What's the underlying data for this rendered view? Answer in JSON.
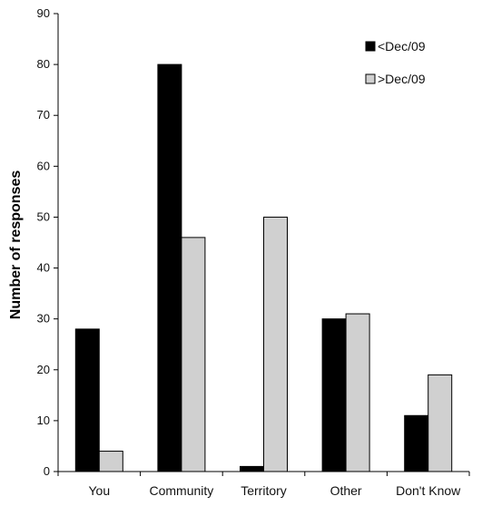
{
  "chart_data": {
    "type": "bar",
    "categories": [
      "You",
      "Community",
      "Territory",
      "Other",
      "Don't Know"
    ],
    "series": [
      {
        "name": "<Dec/09",
        "values": [
          28,
          80,
          1,
          30,
          11
        ],
        "color": "#000000"
      },
      {
        "name": ">Dec/09",
        "values": [
          4,
          46,
          50,
          31,
          19
        ],
        "color": "#d0d0d0"
      }
    ],
    "ylabel": "Number of responses",
    "xlabel": "",
    "ylim": [
      0,
      90
    ],
    "yticks": [
      0,
      10,
      20,
      30,
      40,
      50,
      60,
      70,
      80,
      90
    ],
    "grid": false,
    "legend_position": "top-right"
  }
}
